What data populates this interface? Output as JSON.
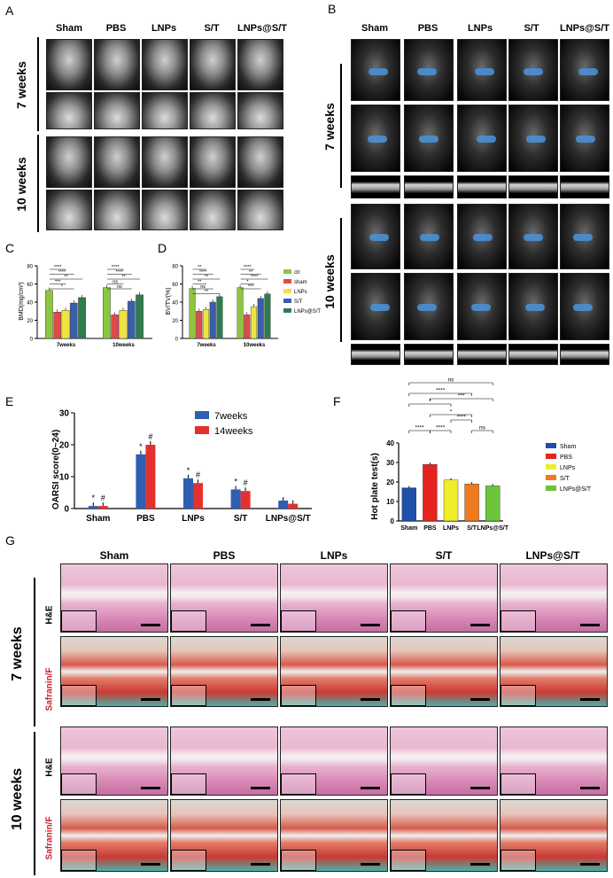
{
  "panels": {
    "A": {
      "letter": "A",
      "cols": [
        "Sham",
        "PBS",
        "LNPs",
        "S/T",
        "LNPs@S/T"
      ],
      "rows": [
        "7 weeks",
        "10 weeks"
      ]
    },
    "B": {
      "letter": "B",
      "cols": [
        "Sham",
        "PBS",
        "LNPs",
        "S/T",
        "LNPs@S/T"
      ],
      "rows": [
        "7 weeks",
        "10 weeks"
      ]
    },
    "C": {
      "letter": "C"
    },
    "D": {
      "letter": "D"
    },
    "E": {
      "letter": "E"
    },
    "F": {
      "letter": "F"
    },
    "G": {
      "letter": "G",
      "cols": [
        "Sham",
        "PBS",
        "LNPs",
        "S/T",
        "LNPs@S/T"
      ],
      "rows": [
        "7 weeks",
        "10 weeks"
      ],
      "stains": [
        "H&E",
        "Safranin/F",
        "H&E",
        "Safranin/F"
      ]
    }
  },
  "colors": {
    "ctr": "#8cc63f",
    "sham": "#e04a4a",
    "lnps": "#f0e442",
    "st": "#3a5fa8",
    "lnpsst": "#2e7d4f",
    "blue7": "#2f5fb0",
    "red14": "#e53030",
    "f_sham": "#1f4fa8",
    "f_pbs": "#e52420",
    "f_lnps": "#eded2a",
    "f_st": "#f07a1e",
    "f_lnpsst": "#6cc43a",
    "ctblue": "#4a8fd4"
  },
  "chart_data": [
    {
      "id": "C",
      "type": "bar",
      "ylabel": "BMD(mg/cm³)",
      "ylim": [
        0,
        80
      ],
      "yticks": [
        0,
        20,
        40,
        60,
        80
      ],
      "categories": [
        "7weeks",
        "10weeks"
      ],
      "series": [
        {
          "name": "ctr",
          "values": [
            53,
            56
          ]
        },
        {
          "name": "sham",
          "values": [
            29,
            26
          ]
        },
        {
          "name": "LNPs",
          "values": [
            31,
            31
          ]
        },
        {
          "name": "S/T",
          "values": [
            39,
            41
          ]
        },
        {
          "name": "LNPs@S/T",
          "values": [
            45,
            48
          ]
        }
      ],
      "annotations": [
        "****",
        "****",
        "**",
        "***",
        "*",
        "****",
        "****",
        "**",
        "ns",
        "ns"
      ]
    },
    {
      "id": "D",
      "type": "bar",
      "ylabel": "BV/TV(%)",
      "ylim": [
        0,
        80
      ],
      "yticks": [
        0,
        20,
        40,
        60,
        80
      ],
      "categories": [
        "7weeks",
        "10weeks"
      ],
      "series": [
        {
          "name": "ctr",
          "values": [
            55,
            56
          ]
        },
        {
          "name": "sham",
          "values": [
            30,
            26
          ]
        },
        {
          "name": "LNPs",
          "values": [
            32,
            35
          ]
        },
        {
          "name": "S/T",
          "values": [
            40,
            44
          ]
        },
        {
          "name": "LNPs@S/T",
          "values": [
            46,
            49
          ]
        }
      ],
      "legend": [
        "ctr",
        "sham",
        "LNPs",
        "S/T",
        "LNPs@S/T"
      ],
      "annotations": [
        "**",
        "****",
        "**",
        "**",
        "ns",
        "**",
        "****",
        "**",
        "****",
        "*",
        "***"
      ]
    },
    {
      "id": "E",
      "type": "bar",
      "ylabel": "OARSI score(0~24)",
      "ylim": [
        0,
        30
      ],
      "yticks": [
        0,
        10,
        20,
        30
      ],
      "categories": [
        "Sham",
        "PBS",
        "LNPs",
        "S/T",
        "LNPs@S/T"
      ],
      "series": [
        {
          "name": "7weeks",
          "values": [
            0.8,
            17,
            9.5,
            6,
            2.5
          ]
        },
        {
          "name": "14weeks",
          "values": [
            0.8,
            20,
            8,
            5.5,
            1.5
          ]
        }
      ],
      "marks_7": [
        "*",
        "*",
        "*",
        "*",
        ""
      ],
      "marks_14": [
        "#",
        "#",
        "#",
        "#",
        ""
      ]
    },
    {
      "id": "F",
      "type": "bar",
      "ylabel": "Hot plate test(s)",
      "ylim": [
        0,
        40
      ],
      "yticks": [
        0,
        10,
        20,
        30,
        40
      ],
      "categories": [
        "Sham",
        "PBS",
        "LNPs",
        "S/T",
        "LNPs@S/T"
      ],
      "values": [
        17,
        29,
        21,
        19,
        18
      ],
      "legend": [
        "Sham",
        "PBS",
        "LNPs",
        "S/T",
        "LNPs@S/T"
      ],
      "annotations": [
        "ns",
        "****",
        "*",
        "***",
        "****",
        "*",
        "****",
        "****",
        "ns",
        "ns"
      ]
    }
  ]
}
